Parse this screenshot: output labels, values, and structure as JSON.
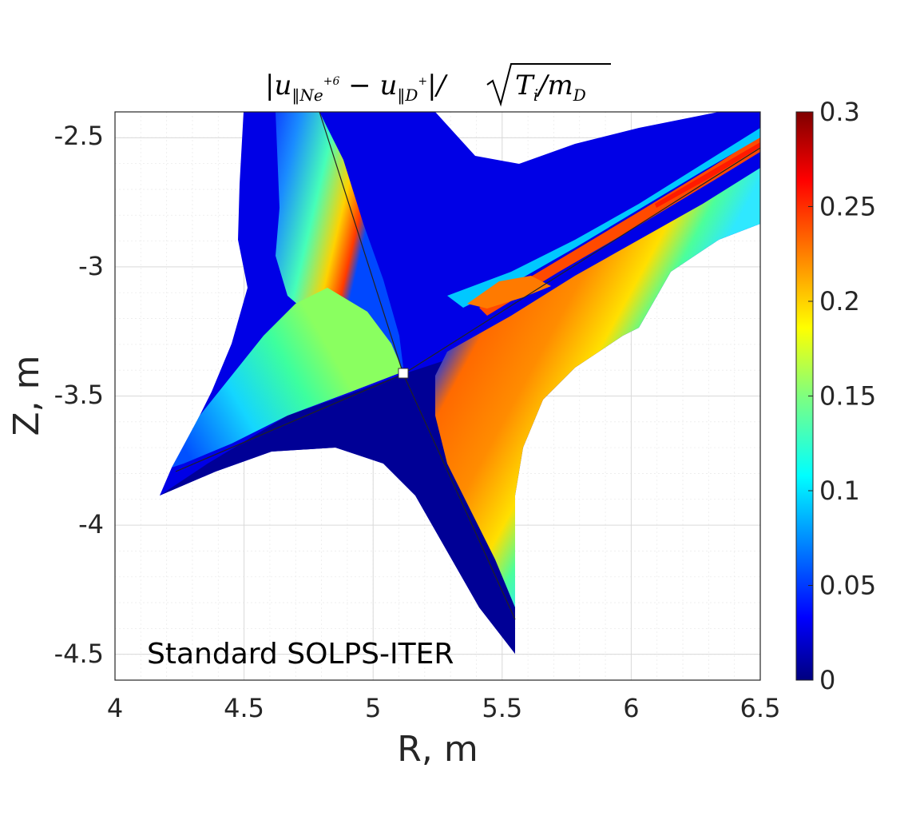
{
  "chart_data": {
    "type": "contour",
    "title": "|u‖Ne+6 − u‖D+| / √(Ti/mD)",
    "title_parts": {
      "bar": "|",
      "u1": "u",
      "sub1": "‖Ne",
      "sup1": "+6",
      "minus": " − ",
      "u2": "u",
      "sub2": "‖D",
      "sup2": "+",
      "tail": "|/",
      "sqrt_content": "T",
      "ti_sub": "i",
      "slash_m": "/m",
      "md_sub": "D"
    },
    "xlabel": "R, m",
    "ylabel": "Z, m",
    "xlim": [
      4,
      6.5
    ],
    "ylim": [
      -4.6,
      -2.4
    ],
    "xticks": [
      "4",
      "4.5",
      "5",
      "5.5",
      "6",
      "6.5"
    ],
    "yticks": [
      "-2.5",
      "-3",
      "-3.5",
      "-4",
      "-4.5"
    ],
    "grid": true,
    "minor_grid": true,
    "colormap": "jet",
    "colorbar": {
      "range": [
        0,
        0.3
      ],
      "ticks": [
        "0",
        "0.05",
        "0.1",
        "0.15",
        "0.2",
        "0.25",
        "0.3"
      ]
    },
    "annotation": "Standard SOLPS-ITER"
  },
  "colors": {
    "jet_deep_blue": "#00007f",
    "jet_blue": "#0000ff",
    "jet_cyan": "#00ffff",
    "jet_yellow": "#ffff00",
    "jet_red": "#ff0000",
    "jet_dark_red": "#7f0000"
  }
}
